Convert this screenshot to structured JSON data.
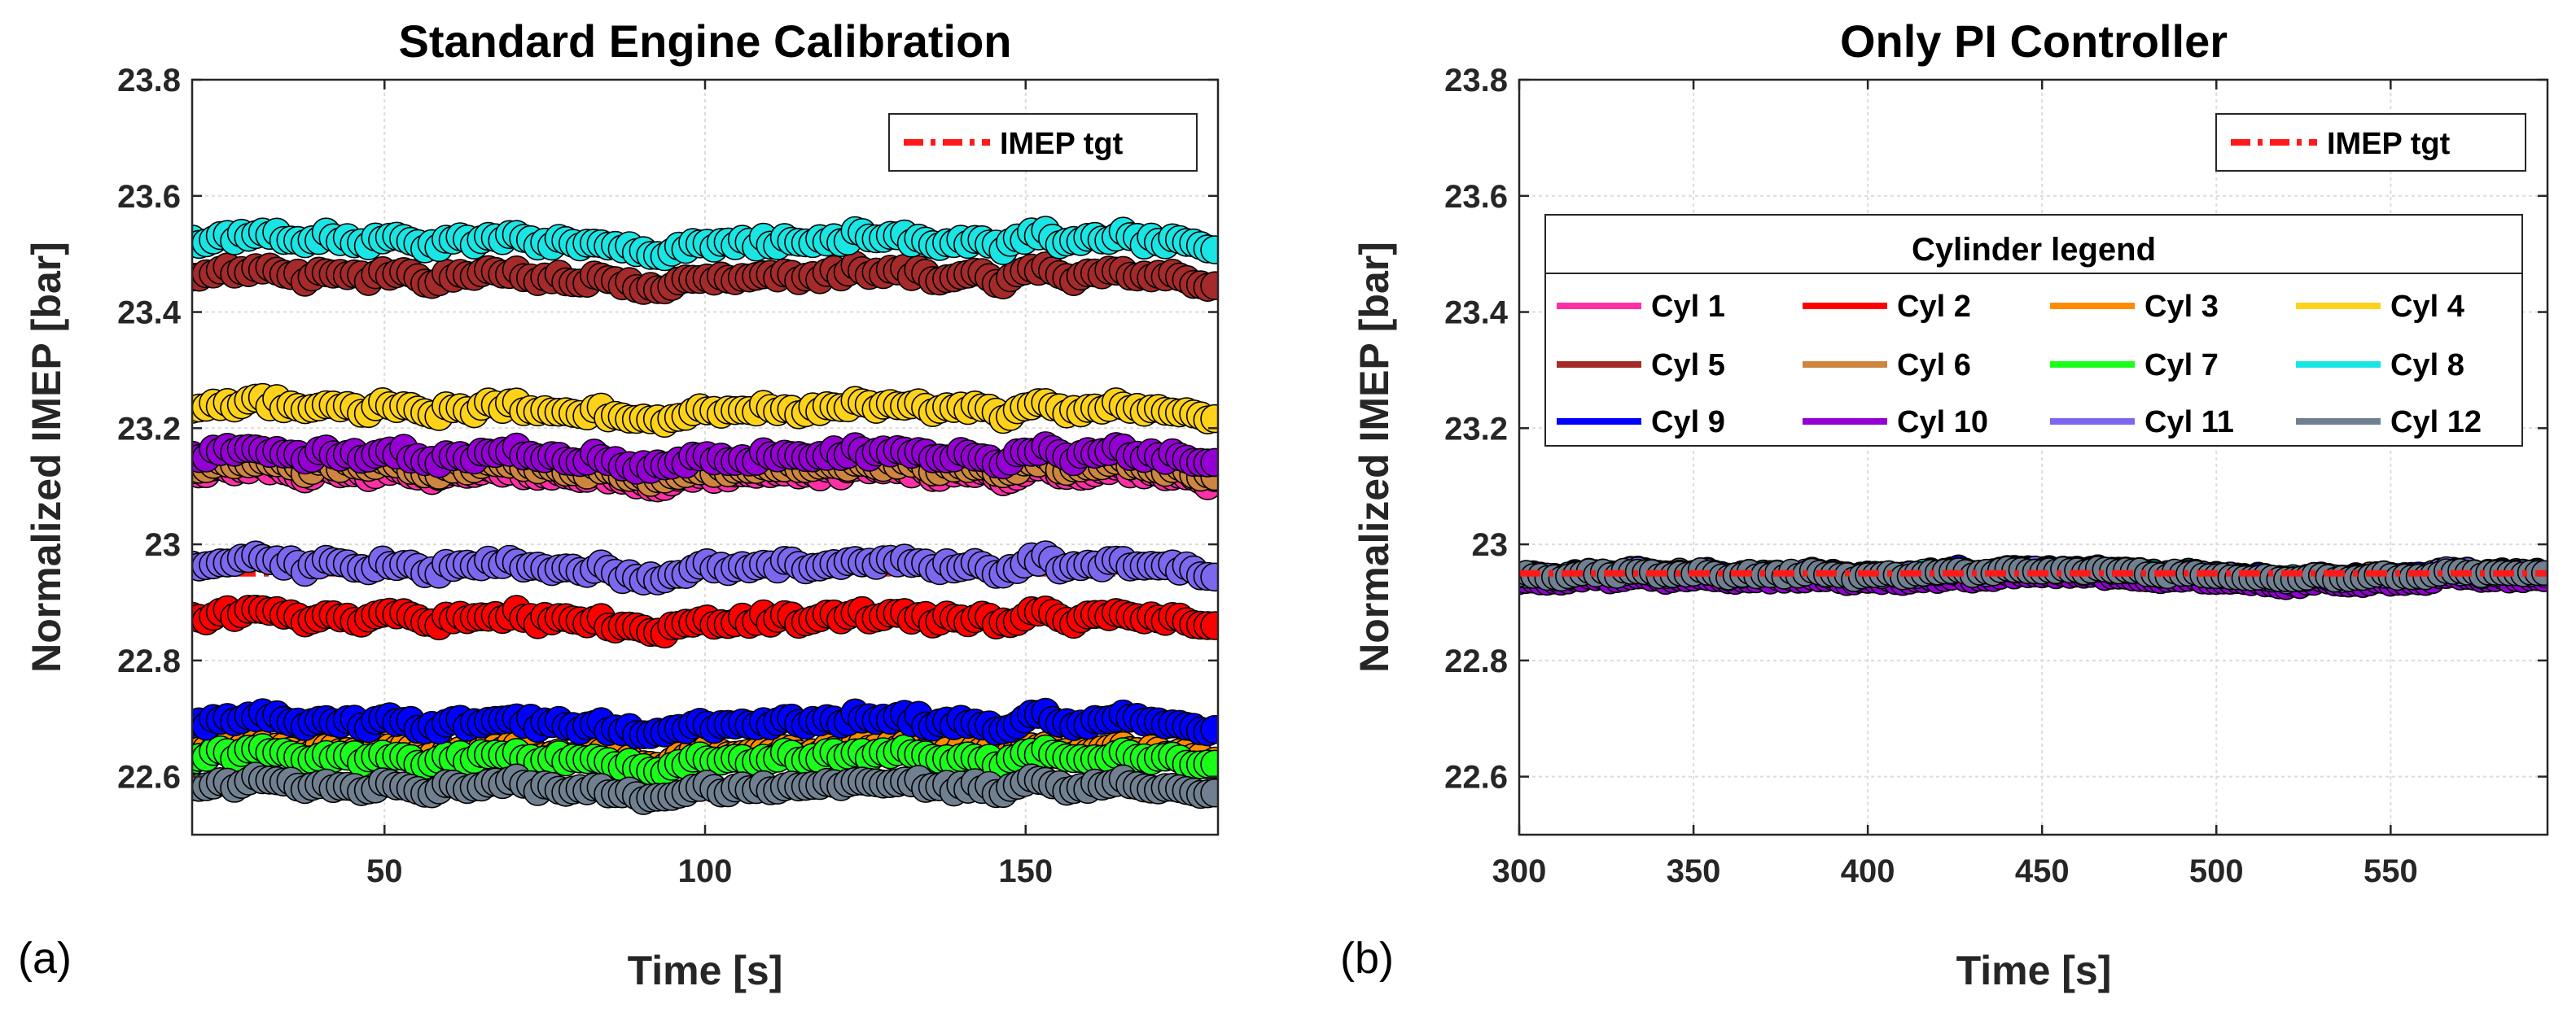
{
  "chart_data": [
    {
      "type": "scatter",
      "panel_label": "(a)",
      "title": "Standard Engine Calibration",
      "xlabel": "Time [s]",
      "ylabel": "Normalized IMEP [bar]",
      "xlim": [
        20,
        180
      ],
      "ylim": [
        22.5,
        23.8
      ],
      "xticks": [
        50,
        100,
        150
      ],
      "xtick_labels": [
        "50",
        "100",
        "150"
      ],
      "yticks": [
        22.6,
        22.8,
        23.0,
        23.2,
        23.4,
        23.6,
        23.8
      ],
      "ytick_labels": [
        "22.6",
        "22.8",
        "23",
        "23.2",
        "23.4",
        "23.6",
        "23.8"
      ],
      "grid": true,
      "target": {
        "name": "IMEP tgt",
        "value": 22.95,
        "color": "#ff1a1a"
      },
      "target_legend_position": "top-right",
      "series": [
        {
          "name": "Cyl 1",
          "mean": 23.12,
          "color": "#ff2fa6"
        },
        {
          "name": "Cyl 2",
          "mean": 22.87,
          "color": "#ff0000"
        },
        {
          "name": "Cyl 3",
          "mean": 22.64,
          "color": "#ff8c00"
        },
        {
          "name": "Cyl 4",
          "mean": 23.23,
          "color": "#ffd21a"
        },
        {
          "name": "Cyl 5",
          "mean": 23.46,
          "color": "#a52a2a"
        },
        {
          "name": "Cyl 6",
          "mean": 23.13,
          "color": "#cd853f"
        },
        {
          "name": "Cyl 7",
          "mean": 22.63,
          "color": "#1aff1a"
        },
        {
          "name": "Cyl 8",
          "mean": 23.52,
          "color": "#1ae5e5"
        },
        {
          "name": "Cyl 9",
          "mean": 22.69,
          "color": "#0000ff"
        },
        {
          "name": "Cyl 10",
          "mean": 23.15,
          "color": "#9400d3"
        },
        {
          "name": "Cyl 11",
          "mean": 22.96,
          "color": "#7b68ee"
        },
        {
          "name": "Cyl 12",
          "mean": 22.58,
          "color": "#708090"
        }
      ]
    },
    {
      "type": "scatter",
      "panel_label": "(b)",
      "title": "Only PI Controller",
      "xlabel": "Time [s]",
      "ylabel": "Normalized IMEP [bar]",
      "xlim": [
        300,
        595
      ],
      "ylim": [
        22.5,
        23.8
      ],
      "xticks": [
        300,
        350,
        400,
        450,
        500,
        550
      ],
      "xtick_labels": [
        "300",
        "350",
        "400",
        "450",
        "500",
        "550"
      ],
      "yticks": [
        22.6,
        22.8,
        23.0,
        23.2,
        23.4,
        23.6,
        23.8
      ],
      "ytick_labels": [
        "22.6",
        "22.8",
        "23",
        "23.2",
        "23.4",
        "23.6",
        "23.8"
      ],
      "grid": true,
      "target": {
        "name": "IMEP tgt",
        "value": 22.95,
        "color": "#ff1a1a"
      },
      "target_legend_position": "top-right",
      "cylinder_legend_title": "Cylinder legend",
      "cylinder_legend_position": "upper-middle",
      "series": [
        {
          "name": "Cyl 1",
          "mean": 22.95,
          "color": "#ff2fa6"
        },
        {
          "name": "Cyl 2",
          "mean": 22.95,
          "color": "#ff0000"
        },
        {
          "name": "Cyl 3",
          "mean": 22.95,
          "color": "#ff8c00"
        },
        {
          "name": "Cyl 4",
          "mean": 22.95,
          "color": "#ffd21a"
        },
        {
          "name": "Cyl 5",
          "mean": 22.95,
          "color": "#a52a2a"
        },
        {
          "name": "Cyl 6",
          "mean": 22.95,
          "color": "#cd853f"
        },
        {
          "name": "Cyl 7",
          "mean": 22.95,
          "color": "#1aff1a"
        },
        {
          "name": "Cyl 8",
          "mean": 22.95,
          "color": "#1ae5e5"
        },
        {
          "name": "Cyl 9",
          "mean": 22.95,
          "color": "#0000ff"
        },
        {
          "name": "Cyl 10",
          "mean": 22.94,
          "color": "#9400d3"
        },
        {
          "name": "Cyl 11",
          "mean": 22.95,
          "color": "#7b68ee"
        },
        {
          "name": "Cyl 12",
          "mean": 22.95,
          "color": "#708090"
        }
      ]
    }
  ]
}
